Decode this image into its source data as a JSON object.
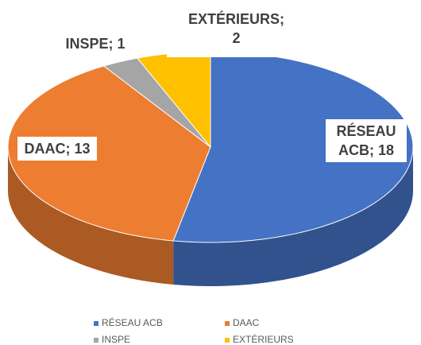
{
  "chart_data": {
    "type": "pie3d",
    "categories": [
      "RÉSEAU ACB",
      "DAAC",
      "INSPE",
      "EXTÉRIEURS"
    ],
    "values": [
      18,
      13,
      1,
      2
    ],
    "value_labels": [
      "RÉSEAU ACB; 18",
      "DAAC; 13",
      "INSPE; 1",
      "EXTÉRIEURS; 2"
    ],
    "colors": [
      "#4472c4",
      "#ed7d31",
      "#a5a5a5",
      "#ffc000"
    ],
    "legend": "bottom"
  }
}
